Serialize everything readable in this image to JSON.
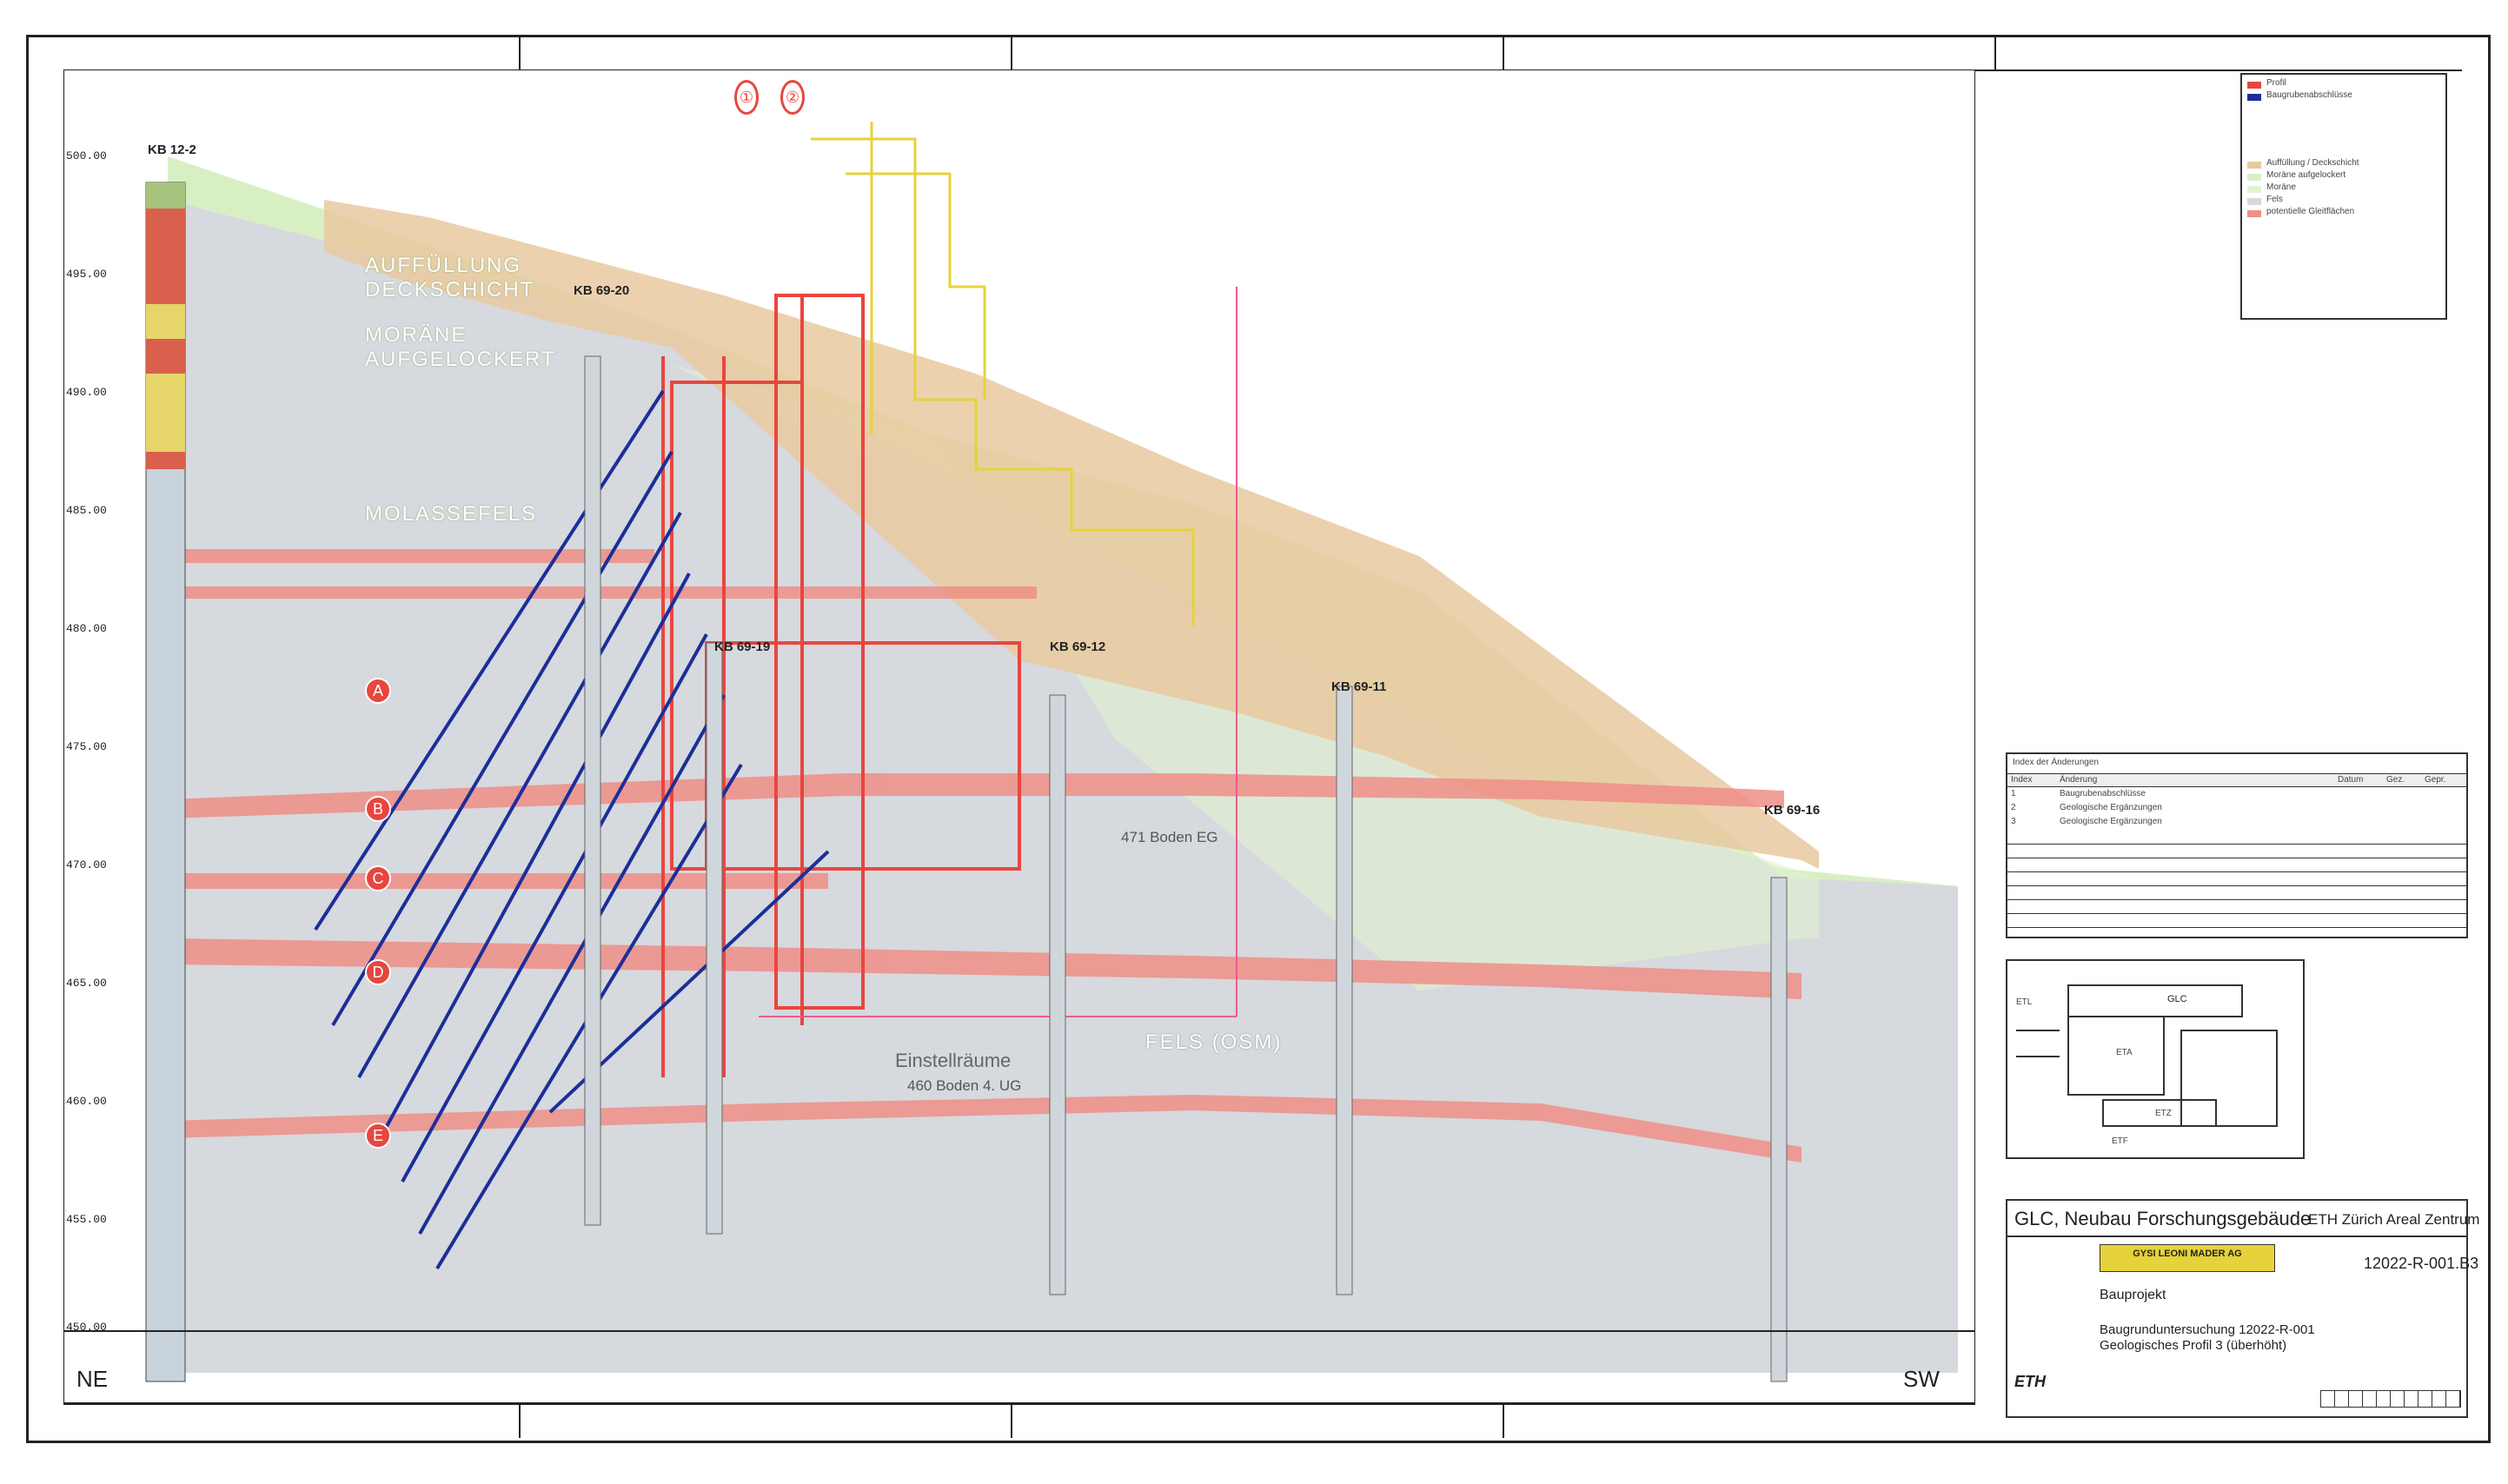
{
  "drawing": {
    "direction_left": "NE",
    "direction_right": "SW",
    "elevations": [
      "500.00",
      "495.00",
      "490.00",
      "485.00",
      "480.00",
      "475.00",
      "470.00",
      "465.00",
      "460.00",
      "455.00",
      "450.00"
    ],
    "layer_labels": {
      "fill": "AUFFÜLLUNG DECKSCHICHT",
      "moraine": "MORÄNE AUFGELOCKERT",
      "rock": "MOLASSEFELS",
      "rock2": "FELS (OSM)"
    },
    "zones": [
      {
        "id": "A",
        "label": "A"
      },
      {
        "id": "B",
        "label": "B"
      },
      {
        "id": "C",
        "label": "C"
      },
      {
        "id": "D",
        "label": "D"
      },
      {
        "id": "E",
        "label": "E"
      }
    ],
    "axes": [
      "①",
      "②"
    ],
    "boreholes": [
      {
        "name": "KB 12-2"
      },
      {
        "name": "KB 69-20"
      },
      {
        "name": "KB 69-19"
      },
      {
        "name": "KB 69-12"
      },
      {
        "name": "KB 69-11"
      },
      {
        "name": "KB 69-16"
      }
    ],
    "annotations": {
      "floor_eg": "471 Boden EG",
      "floor_ug": "460 Boden 4. UG",
      "einstell": "Einstellräume"
    }
  },
  "legend": {
    "items": [
      "Profil",
      "Baugrubenabschlüsse",
      "Auffüllung / Deckschicht",
      "Moräne aufgelockert",
      "Moräne",
      "Fels",
      "potentielle Gleitflächen"
    ],
    "colors": {
      "red": "#e8463f",
      "tan": "#e9c9a0",
      "green": "#d8efc4",
      "grey": "#d6d9de",
      "blue": "#1c2e9a",
      "yellow": "#e6d23a",
      "pink": "#ef8e87"
    }
  },
  "revision_table": {
    "title": "Index der Änderungen",
    "headers": [
      "Index",
      "Änderung",
      "Datum",
      "Gez.",
      "Gepr."
    ],
    "rows": [
      [
        "1",
        "Baugrubenabschlüsse",
        "",
        "",
        ""
      ],
      [
        "2",
        "Geologische Ergänzungen",
        "",
        "",
        ""
      ],
      [
        "3",
        "Geologische Ergänzungen",
        "",
        "",
        ""
      ]
    ]
  },
  "site_plan": {
    "labels": [
      "ETL",
      "GLC",
      "ETA",
      "ETZ",
      "ETF"
    ]
  },
  "title_block": {
    "project": "GLC, Neubau Forschungsgebäude",
    "client": "ETH Zürich Areal Zentrum",
    "plan_number": "12022-R-001.B3",
    "company": "GYSI LEONI MADER AG",
    "phase": "Bauprojekt",
    "subject_1": "Baugrunduntersuchung 12022-R-001",
    "subject_2": "Geologisches Profil 3 (überhöht)",
    "eth_logo": "ETH"
  }
}
